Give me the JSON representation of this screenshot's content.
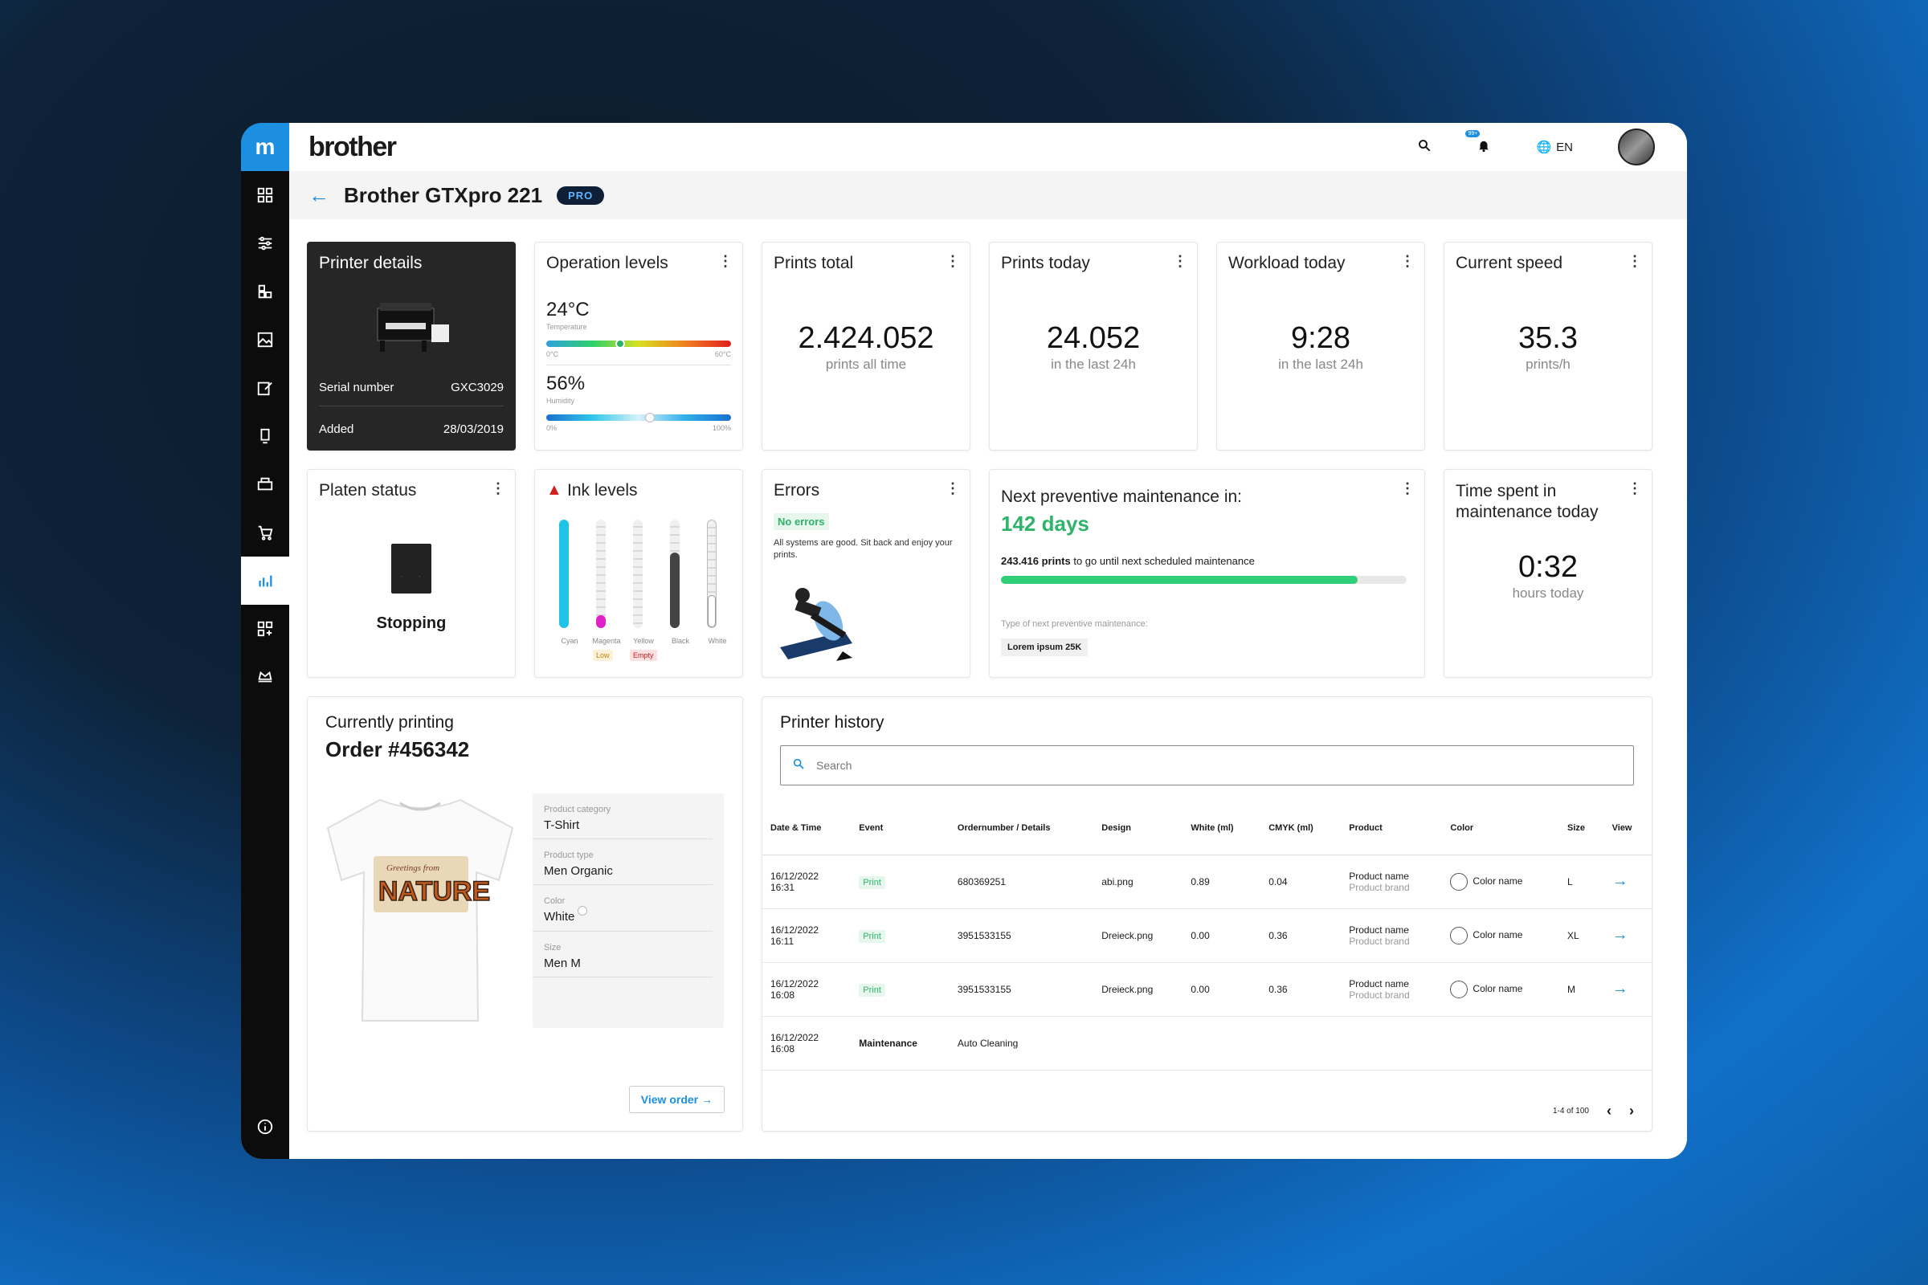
{
  "app": {
    "brand": "brother",
    "lang": "EN",
    "notif_count": "99+"
  },
  "page": {
    "title": "Brother GTXpro 221",
    "tag": "PRO"
  },
  "colors": {
    "accent": "#1d8fe0",
    "success": "#2db36a",
    "dark": "#262626"
  },
  "printer_details": {
    "title": "Printer details",
    "serial_label": "Serial number",
    "serial": "GXC3029",
    "added_label": "Added",
    "added": "28/03/2019"
  },
  "operation": {
    "title": "Operation levels",
    "temp": "24°C",
    "temp_label": "Temperature",
    "temp_min": "0°C",
    "temp_max": "60°C",
    "temp_level": 0.4,
    "humidity": "56%",
    "humidity_label": "Humidity",
    "hum_min": "0%",
    "hum_max": "100%",
    "hum_level": 0.56
  },
  "prints_total": {
    "title": "Prints total",
    "value": "2.424.052",
    "sub": "prints all time"
  },
  "prints_today": {
    "title": "Prints today",
    "value": "24.052",
    "sub": "in the last 24h"
  },
  "workload": {
    "title": "Workload today",
    "value": "9:28",
    "sub": "in the last 24h"
  },
  "speed": {
    "title": "Current speed",
    "value": "35.3",
    "sub": "prints/h"
  },
  "platen": {
    "title": "Platen status",
    "status": "Stopping"
  },
  "ink": {
    "title": "Ink levels",
    "inks": [
      {
        "name": "Cyan",
        "level": 1.0,
        "color": "#1fc3e8"
      },
      {
        "name": "Magenta",
        "level": 0.12,
        "color": "#e020c8",
        "tag": "Low"
      },
      {
        "name": "Yellow",
        "level": 0,
        "color": "#f2d200",
        "tag": "Empty"
      },
      {
        "name": "Black",
        "level": 0.7,
        "color": "#444444"
      },
      {
        "name": "White",
        "level": 0.3,
        "color": "#ffffff"
      }
    ]
  },
  "errors": {
    "title": "Errors",
    "badge": "No errors",
    "text": "All systems are good. Sit back and enjoy your prints."
  },
  "maintenance": {
    "title": "Next preventive maintenance in:",
    "days": "142 days",
    "prints_bold": "243.416 prints",
    "prints_rest": "to go until next scheduled maintenance",
    "progress": 0.88,
    "type_label": "Type of next preventive maintenance:",
    "type": "Lorem ipsum 25K"
  },
  "time_spent": {
    "title": "Time spent in maintenance today",
    "value": "0:32",
    "sub": "hours today"
  },
  "current": {
    "label": "Currently printing",
    "order": "Order #456342",
    "props": [
      {
        "label": "Product category",
        "value": "T-Shirt"
      },
      {
        "label": "Product type",
        "value": "Men Organic"
      },
      {
        "label": "Color",
        "value": "White"
      },
      {
        "label": "Size",
        "value": "Men M"
      }
    ],
    "view_order": "View order",
    "shirt_text": "NATURE",
    "shirt_small": "Greetings from"
  },
  "history": {
    "title": "Printer history",
    "search_placeholder": "Search",
    "headers": [
      "Date & Time",
      "Event",
      "Ordernumber / Details",
      "Design",
      "White (ml)",
      "CMYK (ml)",
      "Product",
      "Color",
      "Size",
      "View"
    ],
    "rows": [
      {
        "date": "16/12/2022",
        "time": "16:31",
        "event": "Print",
        "order": "680369251",
        "design": "abi.png",
        "white": "0.89",
        "cmyk": "0.04",
        "product": "Product name",
        "brand": "Product brand",
        "color": "Color name",
        "size": "L"
      },
      {
        "date": "16/12/2022",
        "time": "16:11",
        "event": "Print",
        "order": "3951533155",
        "design": "Dreieck.png",
        "white": "0.00",
        "cmyk": "0.36",
        "product": "Product name",
        "brand": "Product brand",
        "color": "Color name",
        "size": "XL"
      },
      {
        "date": "16/12/2022",
        "time": "16:08",
        "event": "Print",
        "order": "3951533155",
        "design": "Dreieck.png",
        "white": "0.00",
        "cmyk": "0.36",
        "product": "Product name",
        "brand": "Product brand",
        "color": "Color name",
        "size": "M"
      },
      {
        "date": "16/12/2022",
        "time": "16:08",
        "event": "Maintenance",
        "order": "Auto Cleaning",
        "design": "",
        "white": "",
        "cmyk": "",
        "product": "",
        "brand": "",
        "color": "",
        "size": ""
      }
    ],
    "pagination": "1-4 of 100"
  }
}
